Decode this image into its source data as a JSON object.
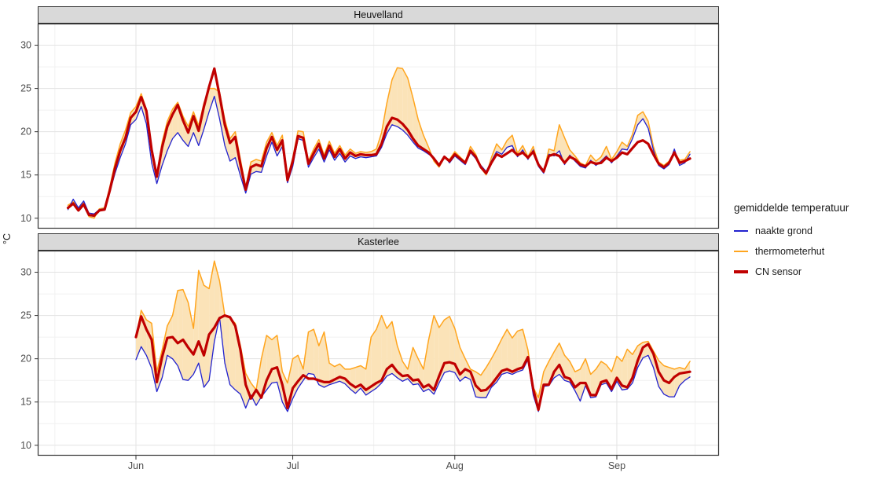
{
  "facets": [
    "Heuvelland",
    "Kasterlee"
  ],
  "y_axis": {
    "title": "°C",
    "major_ticks": [
      10,
      15,
      20,
      25,
      30
    ],
    "minor_ticks": [
      12.5,
      17.5,
      22.5,
      27.5
    ]
  },
  "x_axis": {
    "major_ticks": [
      {
        "label": "Jun",
        "day": 0
      },
      {
        "label": "Jul",
        "day": 30
      },
      {
        "label": "Aug",
        "day": 61
      },
      {
        "label": "Sep",
        "day": 92
      }
    ],
    "minor_days": [
      -15.5,
      15,
      45.5,
      76.5,
      107
    ]
  },
  "legend": {
    "title": "gemiddelde temperatuur",
    "items": [
      {
        "label": "naakte grond",
        "color": "#2222CE",
        "key_thickness": 2.5
      },
      {
        "label": "thermometerhut",
        "color": "#FFA51E",
        "key_thickness": 2.5
      },
      {
        "label": "CN sensor",
        "color": "#C00000",
        "key_thickness": 4
      }
    ]
  },
  "style": {
    "strip_bg": "#D9D9D9",
    "strip_text": "#141414",
    "panel_border": "#333333",
    "panel_bg": "#FFFFFF",
    "grid_major": "#E3E3E3",
    "grid_minor": "#F1F1F1",
    "axis_text": "#4D4D4D",
    "tick_color": "#333333",
    "ribbon_hut_above": "#FBE3B8",
    "ribbon_grond_above": "#CBD1F0"
  },
  "chart_data": [
    {
      "type": "line",
      "panel": "Heuvelland",
      "ylabel": "°C",
      "ylim": [
        8.8,
        32.5
      ],
      "x_unit": "days since Jun 1 (Jun=0, Jul=30, Aug=61, Sep=92)",
      "day_start": -13,
      "day_step": 1,
      "ribbon": {
        "lower": "naakte grond",
        "upper": "thermometerhut"
      },
      "series": [
        {
          "name": "naakte grond",
          "color": "#2222CE",
          "width": 1.3,
          "values": [
            11.0,
            12.2,
            11.2,
            12.0,
            10.6,
            10.5,
            11.0,
            11.1,
            13.0,
            15.2,
            17.0,
            18.6,
            20.8,
            21.4,
            22.9,
            20.9,
            16.4,
            14.0,
            16.1,
            17.8,
            19.2,
            19.9,
            19.0,
            18.3,
            19.9,
            18.4,
            20.3,
            22.3,
            24.1,
            21.5,
            18.4,
            16.6,
            17.0,
            14.9,
            12.9,
            15.1,
            15.4,
            15.3,
            17.2,
            18.8,
            17.2,
            18.3,
            14.1,
            16.0,
            19.2,
            19.0,
            15.9,
            17.0,
            18.0,
            16.5,
            17.9,
            16.7,
            17.5,
            16.5,
            17.2,
            16.9,
            17.1,
            17.0,
            17.1,
            17.2,
            18.2,
            19.8,
            20.8,
            20.6,
            20.2,
            19.6,
            18.8,
            18.1,
            17.8,
            17.4,
            17.0,
            16.2,
            17.2,
            16.4,
            17.2,
            16.7,
            16.2,
            17.6,
            16.9,
            16.1,
            15.4,
            16.6,
            17.7,
            17.4,
            18.2,
            18.4,
            17.1,
            17.9,
            16.8,
            17.9,
            16.0,
            15.2,
            17.4,
            17.2,
            17.8,
            16.2,
            17.3,
            16.6,
            16.0,
            15.8,
            16.7,
            16.1,
            16.6,
            17.2,
            16.4,
            17.2,
            18.0,
            17.9,
            19.2,
            20.8,
            21.5,
            20.4,
            17.9,
            16.1,
            15.7,
            16.2,
            18.0,
            16.1,
            16.4,
            17.4
          ]
        },
        {
          "name": "thermometerhut",
          "color": "#FFA51E",
          "width": 1.5,
          "values": [
            11.5,
            11.9,
            11.2,
            11.8,
            10.2,
            10.0,
            11.1,
            11.2,
            13.6,
            16.4,
            18.6,
            20.2,
            22.2,
            22.9,
            24.4,
            22.6,
            18.2,
            15.1,
            18.8,
            21.2,
            22.6,
            23.4,
            21.8,
            20.6,
            22.3,
            20.7,
            23.3,
            25.0,
            25.0,
            24.6,
            21.4,
            19.2,
            20.0,
            16.8,
            13.6,
            16.5,
            16.8,
            16.6,
            18.8,
            19.9,
            18.4,
            19.6,
            14.7,
            17.0,
            20.1,
            20.0,
            16.6,
            18.0,
            19.1,
            17.3,
            18.9,
            17.5,
            18.4,
            17.3,
            18.0,
            17.5,
            17.7,
            17.6,
            17.7,
            18.0,
            19.9,
            23.3,
            26.0,
            27.4,
            27.3,
            26.2,
            23.9,
            21.4,
            19.6,
            18.2,
            16.6,
            15.9,
            17.0,
            16.8,
            17.7,
            17.1,
            16.5,
            18.3,
            17.4,
            15.8,
            15.0,
            17.0,
            18.6,
            17.9,
            19.0,
            19.6,
            17.5,
            18.4,
            17.1,
            18.3,
            16.2,
            15.3,
            18.0,
            17.8,
            20.8,
            19.3,
            17.9,
            17.2,
            16.4,
            16.1,
            17.3,
            16.6,
            17.1,
            18.3,
            16.8,
            17.7,
            18.8,
            18.3,
            19.7,
            21.9,
            22.3,
            21.2,
            18.3,
            16.5,
            16.1,
            16.6,
            17.7,
            16.7,
            16.8,
            17.7
          ]
        },
        {
          "name": "CN sensor",
          "color": "#C00000",
          "width": 3.2,
          "values": [
            11.2,
            11.7,
            10.9,
            11.6,
            10.4,
            10.3,
            10.9,
            11.0,
            13.2,
            15.8,
            17.8,
            19.3,
            21.6,
            22.3,
            24.0,
            22.4,
            17.9,
            14.8,
            18.2,
            20.6,
            22.0,
            23.1,
            21.3,
            19.9,
            21.8,
            20.1,
            22.9,
            25.2,
            27.3,
            24.2,
            20.8,
            18.7,
            19.4,
            16.2,
            13.3,
            15.9,
            16.2,
            16.0,
            18.1,
            19.4,
            17.9,
            19.0,
            14.4,
            16.6,
            19.5,
            19.3,
            16.3,
            17.5,
            18.6,
            16.9,
            18.4,
            17.1,
            18.0,
            16.9,
            17.6,
            17.2,
            17.4,
            17.3,
            17.3,
            17.4,
            18.6,
            20.6,
            21.6,
            21.4,
            20.9,
            20.2,
            19.2,
            18.4,
            18.0,
            17.6,
            16.9,
            16.1,
            17.1,
            16.6,
            17.4,
            16.9,
            16.4,
            17.8,
            17.1,
            15.9,
            15.2,
            16.4,
            17.4,
            17.1,
            17.5,
            17.9,
            17.3,
            17.6,
            17.0,
            17.7,
            16.2,
            15.4,
            17.2,
            17.4,
            17.2,
            16.4,
            17.1,
            16.8,
            16.2,
            16.0,
            16.5,
            16.3,
            16.4,
            17.0,
            16.6,
            17.0,
            17.6,
            17.4,
            18.1,
            18.8,
            19.0,
            18.6,
            17.4,
            16.3,
            15.9,
            16.4,
            17.6,
            16.4,
            16.6,
            16.9
          ]
        }
      ]
    },
    {
      "type": "line",
      "panel": "Kasterlee",
      "ylabel": "°C",
      "ylim": [
        8.8,
        32.5
      ],
      "x_unit": "days since Jun 1 (Jun=0, Jul=30, Aug=61, Sep=92)",
      "day_start": 0,
      "day_step": 1,
      "ribbon": {
        "lower": "naakte grond",
        "upper": "thermometerhut"
      },
      "series": [
        {
          "name": "naakte grond",
          "color": "#2222CE",
          "width": 1.3,
          "values": [
            19.9,
            21.4,
            20.4,
            18.9,
            16.2,
            17.8,
            20.4,
            20.0,
            19.2,
            17.6,
            17.5,
            18.2,
            19.5,
            16.7,
            17.5,
            22.0,
            24.8,
            19.5,
            17.0,
            16.4,
            15.9,
            14.3,
            15.8,
            14.6,
            15.6,
            16.4,
            17.2,
            17.3,
            15.0,
            13.9,
            15.4,
            16.6,
            17.5,
            18.3,
            18.2,
            17.0,
            16.7,
            17.0,
            17.2,
            17.4,
            17.1,
            16.5,
            16.0,
            16.6,
            15.8,
            16.2,
            16.6,
            17.2,
            18.0,
            18.3,
            17.8,
            17.4,
            17.7,
            17.0,
            17.1,
            16.2,
            16.5,
            15.9,
            17.2,
            18.4,
            18.6,
            18.4,
            17.4,
            17.9,
            17.6,
            15.6,
            15.5,
            15.5,
            16.7,
            17.3,
            18.2,
            18.4,
            18.2,
            18.5,
            18.7,
            19.9,
            15.8,
            13.9,
            16.8,
            16.9,
            17.8,
            18.2,
            17.5,
            17.3,
            16.3,
            15.1,
            16.9,
            15.5,
            15.6,
            17.0,
            17.2,
            16.2,
            17.4,
            16.4,
            16.5,
            17.2,
            19.0,
            20.1,
            20.4,
            19.0,
            16.8,
            15.9,
            15.6,
            15.6,
            16.9,
            17.5,
            17.9
          ]
        },
        {
          "name": "thermometerhut",
          "color": "#FFA51E",
          "width": 1.5,
          "values": [
            22.5,
            25.6,
            24.5,
            24.1,
            18.5,
            21.0,
            23.8,
            25.0,
            27.9,
            28.0,
            26.5,
            23.5,
            30.2,
            28.5,
            28.1,
            31.3,
            29.0,
            25.0,
            24.7,
            24.1,
            21.5,
            18.3,
            17.2,
            16.4,
            20.0,
            22.7,
            22.2,
            22.7,
            18.5,
            17.2,
            20.0,
            20.4,
            18.8,
            23.1,
            23.4,
            21.5,
            23.1,
            19.5,
            19.1,
            19.4,
            18.8,
            18.8,
            19.0,
            19.2,
            18.8,
            22.5,
            23.4,
            25.0,
            23.5,
            24.3,
            21.5,
            19.7,
            18.8,
            21.3,
            20.0,
            18.8,
            22.2,
            25.0,
            23.6,
            24.5,
            24.9,
            23.5,
            21.3,
            20.0,
            18.8,
            18.5,
            18.1,
            19.0,
            20.0,
            21.1,
            22.3,
            23.4,
            22.4,
            23.2,
            23.4,
            21.0,
            16.7,
            15.5,
            18.5,
            19.7,
            20.8,
            21.8,
            20.4,
            19.7,
            18.5,
            18.8,
            20.0,
            18.2,
            18.8,
            19.7,
            19.3,
            18.5,
            20.3,
            19.7,
            21.1,
            20.5,
            21.5,
            21.9,
            22.0,
            20.9,
            19.8,
            19.2,
            19.0,
            18.8,
            19.0,
            18.8,
            19.7
          ]
        },
        {
          "name": "CN sensor",
          "color": "#C00000",
          "width": 3.2,
          "values": [
            22.5,
            24.9,
            23.4,
            22.2,
            17.3,
            20.2,
            22.4,
            22.5,
            21.8,
            22.2,
            21.3,
            20.5,
            22.0,
            20.4,
            22.8,
            23.6,
            24.7,
            25.0,
            24.8,
            23.8,
            21.0,
            17.0,
            15.4,
            16.4,
            15.5,
            17.5,
            18.8,
            19.0,
            17.0,
            14.3,
            16.6,
            17.4,
            18.1,
            17.7,
            17.7,
            17.5,
            17.3,
            17.3,
            17.6,
            17.9,
            17.7,
            17.1,
            16.7,
            17.0,
            16.4,
            16.8,
            17.2,
            17.5,
            18.8,
            19.3,
            18.5,
            18.0,
            18.1,
            17.5,
            17.6,
            16.7,
            17.0,
            16.4,
            18.0,
            19.5,
            19.6,
            19.4,
            18.2,
            18.8,
            18.5,
            16.9,
            16.3,
            16.4,
            17.0,
            17.8,
            18.6,
            18.8,
            18.5,
            18.8,
            19.0,
            20.2,
            16.5,
            14.1,
            17.0,
            17.0,
            18.5,
            19.3,
            17.9,
            17.7,
            16.7,
            17.2,
            17.2,
            15.8,
            15.8,
            17.3,
            17.5,
            16.5,
            17.8,
            16.9,
            16.7,
            17.8,
            19.8,
            21.3,
            21.7,
            20.6,
            18.5,
            17.5,
            17.2,
            17.9,
            18.3,
            18.4,
            18.5
          ]
        }
      ]
    }
  ]
}
